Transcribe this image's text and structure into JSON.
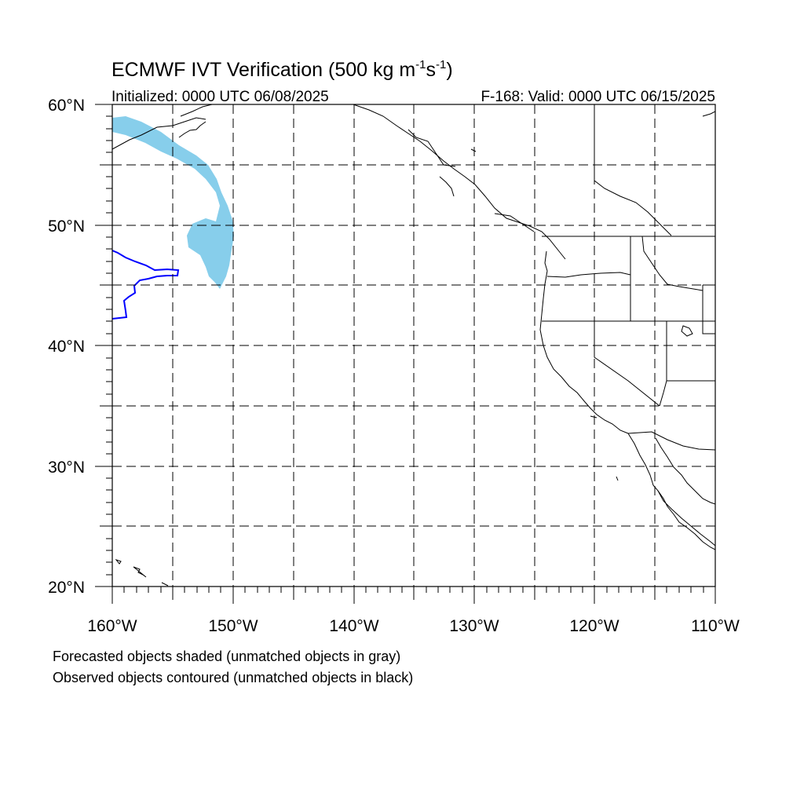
{
  "figure": {
    "title_main": "ECMWF IVT Verification (500 kg m",
    "title_exp1": "-1",
    "title_mid": "s",
    "title_exp2": "-1",
    "title_end": ")",
    "initialized": "Initialized: 0000 UTC 06/08/2025",
    "valid": "F-168: Valid: 0000 UTC 06/15/2025",
    "lon_labels": [
      "160°W",
      "150°W",
      "140°W",
      "130°W",
      "120°W",
      "110°W"
    ],
    "lat_labels": [
      "60°N",
      "50°N",
      "40°N",
      "30°N",
      "20°N"
    ],
    "notes": [
      "Forecasted objects shaded (unmatched objects in gray)",
      "Observed objects contoured (unmatched objects in black)"
    ]
  },
  "map_data": {
    "projection": "cylindrical equidistant",
    "lon_range": [
      -160,
      -110
    ],
    "lat_range": [
      20,
      60
    ],
    "gridlines": "dashed every 5°",
    "forecast_object_color": "#87ceeb",
    "observed_object_color": "#0000ff",
    "coastline_color": "#000000"
  }
}
